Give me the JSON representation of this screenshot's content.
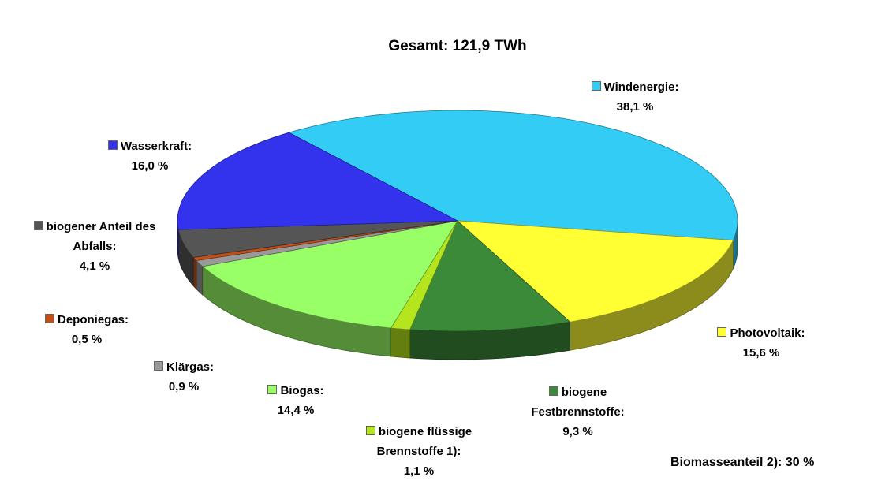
{
  "chart_data": {
    "type": "pie",
    "title": "Gesamt: 121,9 TWh",
    "annotation": "Biomasseanteil 2): 30 %",
    "categories": [
      "Windenergie:",
      "Photovoltaik:",
      "biogene Festbrennstoffe:",
      "biogene flüssige Brennstoffe 1):",
      "Biogas:",
      "Klärgas:",
      "Deponiegas:",
      "biogener Anteil des Abfalls:",
      "Wasserkraft:"
    ],
    "values": [
      38.1,
      15.6,
      9.3,
      1.1,
      14.4,
      0.9,
      0.5,
      4.1,
      16.0
    ],
    "value_labels": [
      "38,1 %",
      "15,6 %",
      "9,3 %",
      "1,1 %",
      "14,4 %",
      "0,9 %",
      "0,5 %",
      "4,1 %",
      "16,0 %"
    ],
    "colors": [
      "#33ccf5",
      "#ffff33",
      "#3a8a3a",
      "#b5e61d",
      "#99ff66",
      "#999999",
      "#c0501a",
      "#555555",
      "#3333ee"
    ]
  }
}
